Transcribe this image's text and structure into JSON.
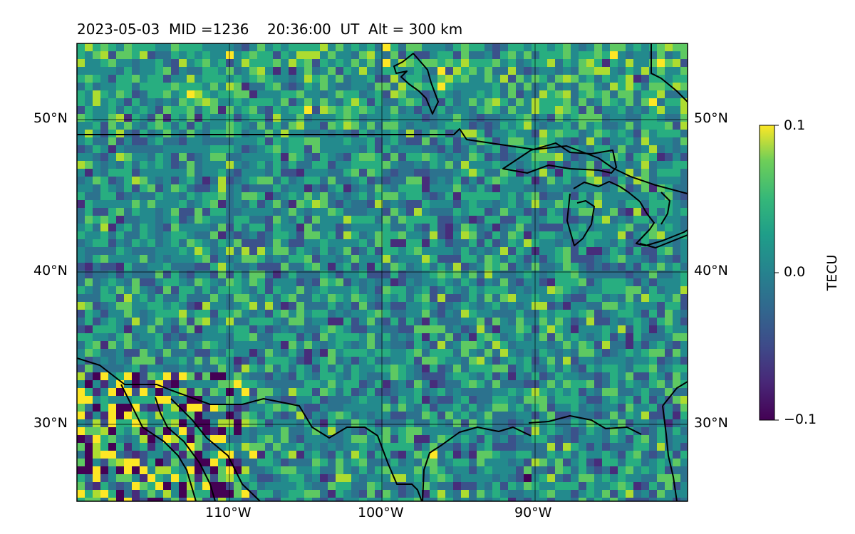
{
  "title": "2023-05-03  MID =1236    20:36:00  UT  Alt = 300 km",
  "map": {
    "lat_labels_left": [
      "50°N",
      "40°N",
      "30°N"
    ],
    "lat_labels_right": [
      "50°N",
      "40°N",
      "30°N"
    ],
    "lon_labels": [
      "110°W",
      "100°W",
      "90°W"
    ],
    "lon_range": [
      -120,
      -80
    ],
    "lat_range": [
      25,
      55
    ],
    "gridlines": true,
    "colormap": "viridis"
  },
  "colorbar": {
    "label": "TECU",
    "ticks": [
      "0.1",
      "0.0",
      "−0.1"
    ],
    "range": [
      -0.1,
      0.1
    ]
  },
  "colors": {
    "viridis_low": "#440154",
    "viridis_mid": "#21918c",
    "viridis_high": "#fde725",
    "coastline": "#000000"
  }
}
